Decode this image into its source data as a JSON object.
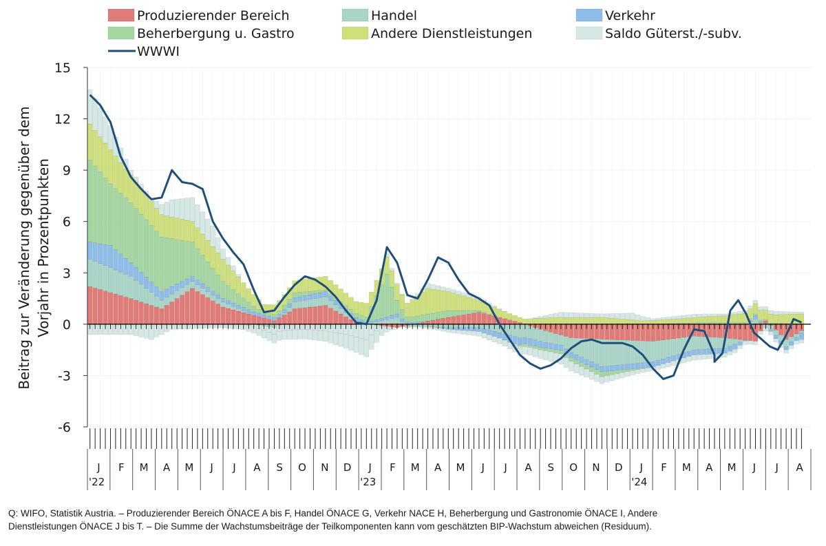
{
  "chart_data": {
    "type": "bar",
    "title": "",
    "ylabel_lines": [
      "Beitrag zur Veränderung gegenüber dem",
      "Vorjahr in Prozentpunkten"
    ],
    "ylim": [
      -6,
      15
    ],
    "yticks": [
      15,
      12,
      9,
      6,
      3,
      0,
      -3,
      -6
    ],
    "ytick_labels": [
      "15",
      "12",
      "9",
      "6",
      "3",
      "0",
      "-3",
      "-6"
    ],
    "legend": [
      {
        "key": "prod",
        "label": "Produzierender Bereich",
        "color": "#e07b78",
        "kind": "bar"
      },
      {
        "key": "handel",
        "label": "Handel",
        "color": "#a8d5c8",
        "kind": "bar"
      },
      {
        "key": "verkehr",
        "label": "Verkehr",
        "color": "#8dbde8",
        "kind": "bar"
      },
      {
        "key": "beherb",
        "label": "Beherbergung u. Gastro",
        "color": "#a3d6a0",
        "kind": "bar"
      },
      {
        "key": "andere",
        "label": "Andere Dienstleistungen",
        "color": "#cfe07a",
        "kind": "bar"
      },
      {
        "key": "saldo",
        "label": "Saldo Güterst./-subv.",
        "color": "#d6e8e6",
        "kind": "bar"
      },
      {
        "key": "wwwi",
        "label": "WWWI",
        "color": "#1f4e79",
        "kind": "line"
      }
    ],
    "x_months": [
      "J",
      "F",
      "M",
      "A",
      "M",
      "J",
      "J",
      "A",
      "S",
      "O",
      "N",
      "D",
      "J",
      "F",
      "M",
      "A",
      "M",
      "J",
      "J",
      "A",
      "S",
      "O",
      "N",
      "D",
      "J",
      "F",
      "M",
      "A",
      "M",
      "J",
      "J",
      "A"
    ],
    "year_labels": [
      {
        "month_index": 0,
        "label": "'22"
      },
      {
        "month_index": 12,
        "label": "'23"
      },
      {
        "month_index": 24,
        "label": "'24"
      }
    ],
    "weeks_per_month": 4.4,
    "n_weeks": 140,
    "component_keyframes": {
      "prod": [
        [
          0,
          2.2
        ],
        [
          8,
          1.5
        ],
        [
          14,
          0.9
        ],
        [
          20,
          2.1
        ],
        [
          26,
          1.0
        ],
        [
          36,
          0.2
        ],
        [
          40,
          0.9
        ],
        [
          46,
          1.1
        ],
        [
          52,
          0.1
        ],
        [
          60,
          -0.2
        ],
        [
          68,
          0.3
        ],
        [
          76,
          0.7
        ],
        [
          84,
          0.1
        ],
        [
          88,
          -0.3
        ],
        [
          94,
          -0.8
        ],
        [
          110,
          -1.0
        ],
        [
          118,
          -0.7
        ],
        [
          124,
          -0.8
        ],
        [
          130,
          -1.0
        ],
        [
          132,
          0.2
        ],
        [
          136,
          -0.9
        ],
        [
          139,
          -0.4
        ]
      ],
      "handel": [
        [
          0,
          1.6
        ],
        [
          8,
          1.3
        ],
        [
          14,
          0.5
        ],
        [
          20,
          0.4
        ],
        [
          26,
          0.3
        ],
        [
          36,
          -0.2
        ],
        [
          40,
          0.4
        ],
        [
          46,
          0.5
        ],
        [
          54,
          0.0
        ],
        [
          60,
          0.4
        ],
        [
          62,
          -0.1
        ],
        [
          70,
          -0.2
        ],
        [
          76,
          -0.2
        ],
        [
          84,
          -0.8
        ],
        [
          92,
          -0.6
        ],
        [
          100,
          -1.6
        ],
        [
          110,
          -1.2
        ],
        [
          118,
          -0.8
        ],
        [
          124,
          -0.6
        ],
        [
          130,
          0.3
        ],
        [
          132,
          -0.2
        ],
        [
          136,
          -0.4
        ],
        [
          139,
          -0.1
        ]
      ],
      "verkehr": [
        [
          0,
          1.0
        ],
        [
          4,
          1.3
        ],
        [
          8,
          0.8
        ],
        [
          14,
          0.5
        ],
        [
          20,
          0.3
        ],
        [
          26,
          0.2
        ],
        [
          36,
          0.2
        ],
        [
          46,
          0.3
        ],
        [
          54,
          0.1
        ],
        [
          60,
          0.2
        ],
        [
          70,
          -0.1
        ],
        [
          84,
          -0.4
        ],
        [
          92,
          -0.3
        ],
        [
          100,
          -0.3
        ],
        [
          110,
          -0.3
        ],
        [
          118,
          -0.3
        ],
        [
          126,
          -0.3
        ],
        [
          130,
          0.2
        ],
        [
          134,
          -0.2
        ],
        [
          138,
          -0.2
        ],
        [
          139,
          -0.4
        ]
      ],
      "beherb": [
        [
          0,
          4.8
        ],
        [
          4,
          3.6
        ],
        [
          8,
          3.5
        ],
        [
          14,
          3.2
        ],
        [
          20,
          2.0
        ],
        [
          26,
          1.0
        ],
        [
          34,
          0.1
        ],
        [
          40,
          0.3
        ],
        [
          46,
          0.1
        ],
        [
          50,
          0.2
        ],
        [
          54,
          0.3
        ],
        [
          58,
          2.5
        ],
        [
          60,
          0.8
        ],
        [
          62,
          0.3
        ],
        [
          66,
          0.4
        ],
        [
          70,
          0.4
        ],
        [
          76,
          0.1
        ],
        [
          84,
          -0.1
        ],
        [
          92,
          -0.2
        ],
        [
          100,
          -0.3
        ],
        [
          106,
          -0.1
        ],
        [
          110,
          0.0
        ],
        [
          120,
          0.1
        ],
        [
          130,
          0.1
        ],
        [
          139,
          0.0
        ]
      ],
      "andere": [
        [
          0,
          2.1
        ],
        [
          4,
          2.0
        ],
        [
          8,
          1.6
        ],
        [
          14,
          1.3
        ],
        [
          20,
          1.2
        ],
        [
          26,
          1.3
        ],
        [
          34,
          0.5
        ],
        [
          40,
          0.7
        ],
        [
          46,
          0.8
        ],
        [
          52,
          0.7
        ],
        [
          58,
          1.0
        ],
        [
          62,
          0.8
        ],
        [
          66,
          1.5
        ],
        [
          70,
          1.1
        ],
        [
          76,
          0.6
        ],
        [
          84,
          0.3
        ],
        [
          92,
          0.4
        ],
        [
          100,
          0.4
        ],
        [
          108,
          0.2
        ],
        [
          118,
          0.3
        ],
        [
          124,
          0.4
        ],
        [
          130,
          0.6
        ],
        [
          134,
          0.5
        ],
        [
          139,
          0.6
        ]
      ],
      "saldo": [
        [
          0,
          2.0
        ],
        [
          4,
          1.4
        ],
        [
          8,
          0.3
        ],
        [
          12,
          0.2
        ],
        [
          16,
          1.0
        ],
        [
          20,
          1.4
        ],
        [
          24,
          1.2
        ],
        [
          26,
          0.6
        ],
        [
          30,
          0.0
        ],
        [
          36,
          -0.4
        ],
        [
          42,
          -0.3
        ],
        [
          46,
          -0.4
        ],
        [
          50,
          -0.6
        ],
        [
          54,
          -0.9
        ],
        [
          58,
          0.2
        ],
        [
          62,
          0.0
        ],
        [
          66,
          0.3
        ],
        [
          70,
          0.2
        ],
        [
          76,
          0.2
        ],
        [
          84,
          -0.1
        ],
        [
          92,
          0.3
        ],
        [
          100,
          0.2
        ],
        [
          106,
          0.4
        ],
        [
          110,
          0.1
        ],
        [
          118,
          0.2
        ],
        [
          124,
          0.1
        ],
        [
          130,
          0.2
        ],
        [
          134,
          0.2
        ],
        [
          139,
          0.1
        ]
      ]
    },
    "negative_extra_keyframes": {
      "saldo": [
        [
          8,
          -0.6
        ],
        [
          12,
          -0.9
        ],
        [
          16,
          -0.3
        ],
        [
          26,
          -0.2
        ],
        [
          36,
          -0.5
        ],
        [
          46,
          -0.6
        ],
        [
          54,
          -1.0
        ],
        [
          60,
          0.0
        ],
        [
          84,
          -0.4
        ],
        [
          92,
          -0.6
        ],
        [
          100,
          -0.4
        ],
        [
          108,
          -0.2
        ],
        [
          118,
          -0.3
        ],
        [
          126,
          -0.2
        ],
        [
          134,
          -0.2
        ],
        [
          139,
          -0.2
        ]
      ]
    },
    "wwwi_keyframes": [
      [
        0,
        13.4
      ],
      [
        2,
        12.8
      ],
      [
        4,
        11.8
      ],
      [
        6,
        9.8
      ],
      [
        8,
        8.6
      ],
      [
        10,
        7.9
      ],
      [
        12,
        7.3
      ],
      [
        14,
        7.4
      ],
      [
        16,
        9.0
      ],
      [
        18,
        8.3
      ],
      [
        20,
        8.2
      ],
      [
        22,
        7.9
      ],
      [
        24,
        6.0
      ],
      [
        26,
        5.0
      ],
      [
        28,
        4.2
      ],
      [
        30,
        3.5
      ],
      [
        32,
        2.0
      ],
      [
        34,
        0.7
      ],
      [
        36,
        0.8
      ],
      [
        38,
        1.6
      ],
      [
        40,
        2.3
      ],
      [
        42,
        2.8
      ],
      [
        44,
        2.6
      ],
      [
        46,
        2.2
      ],
      [
        48,
        1.6
      ],
      [
        50,
        0.8
      ],
      [
        52,
        0.1
      ],
      [
        54,
        0.0
      ],
      [
        56,
        1.4
      ],
      [
        58,
        4.5
      ],
      [
        60,
        3.6
      ],
      [
        62,
        1.7
      ],
      [
        64,
        1.5
      ],
      [
        66,
        2.6
      ],
      [
        68,
        3.9
      ],
      [
        70,
        3.6
      ],
      [
        72,
        2.6
      ],
      [
        74,
        1.8
      ],
      [
        76,
        1.5
      ],
      [
        78,
        1.1
      ],
      [
        80,
        0.0
      ],
      [
        82,
        -0.9
      ],
      [
        84,
        -1.8
      ],
      [
        86,
        -2.3
      ],
      [
        88,
        -2.6
      ],
      [
        90,
        -2.4
      ],
      [
        92,
        -2.0
      ],
      [
        94,
        -1.4
      ],
      [
        96,
        -1.0
      ],
      [
        98,
        -0.9
      ],
      [
        100,
        -1.1
      ],
      [
        102,
        -1.1
      ],
      [
        104,
        -1.1
      ],
      [
        106,
        -1.3
      ],
      [
        108,
        -1.8
      ],
      [
        110,
        -2.6
      ],
      [
        112,
        -3.2
      ],
      [
        114,
        -3.0
      ],
      [
        116,
        -1.5
      ],
      [
        118,
        -0.3
      ],
      [
        120,
        -0.4
      ],
      [
        122,
        -1.8
      ],
      [
        124,
        -2.3
      ],
      [
        126,
        -2.5
      ],
      [
        128,
        -2.3
      ],
      [
        130,
        -1.3
      ],
      [
        132,
        -0.9
      ],
      [
        134,
        -0.5
      ],
      [
        136,
        -0.4
      ],
      [
        138,
        -0.9
      ],
      [
        139,
        -2.0
      ]
    ],
    "wwwi_tail_keyframes": [
      [
        124,
        -2.2
      ],
      [
        126,
        -1.7
      ],
      [
        128,
        0.8
      ],
      [
        130,
        1.4
      ],
      [
        132,
        0.6
      ],
      [
        134,
        -0.5
      ],
      [
        136,
        -0.9
      ],
      [
        138,
        -1.3
      ],
      [
        140,
        -1.5
      ],
      [
        142,
        -0.7
      ],
      [
        144,
        0.3
      ],
      [
        146,
        0.1
      ]
    ],
    "source_lines": [
      "Q: WIFO, Statistik Austria. – Produzierender Bereich ÖNACE A bis F, Handel ÖNACE G, Verkehr NACE H, Beherbergung und Gastronomie ÖNACE I, Andere",
      "Dienstleistungen ÖNACE  J bis T. – Die Summe der Wachstumsbeiträge der Teilkomponenten kann vom geschätzten BIP-Wachstum abweichen (Residuum)."
    ]
  }
}
